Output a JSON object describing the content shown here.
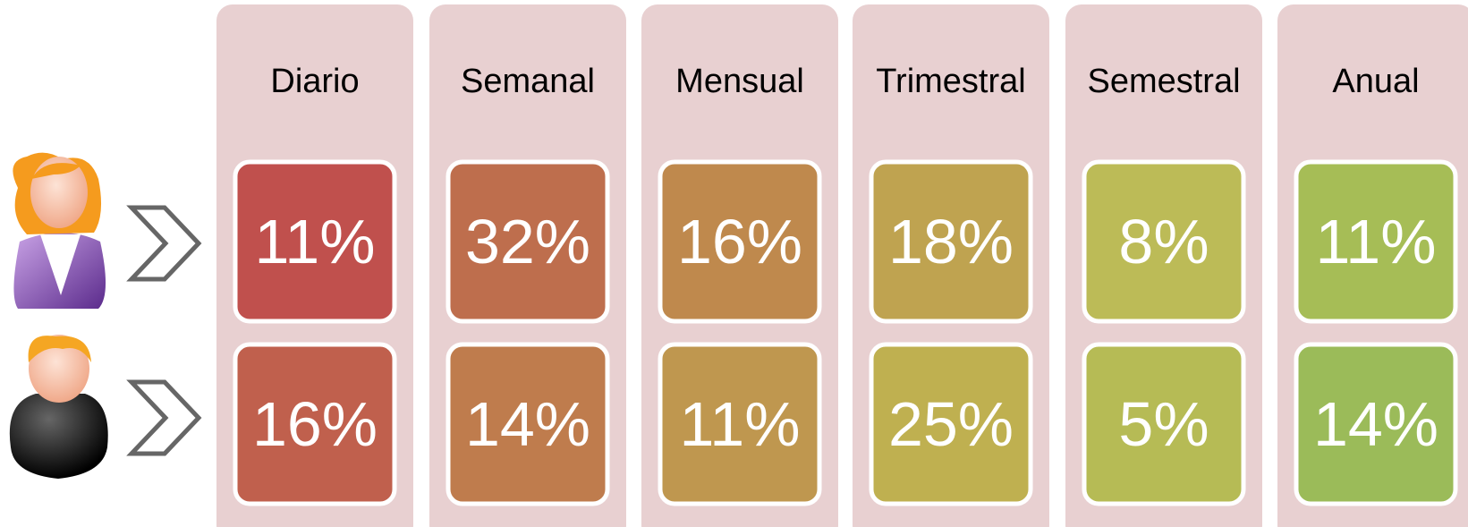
{
  "columns": [
    {
      "label": "Diario",
      "values": [
        "11%",
        "16%"
      ]
    },
    {
      "label": "Semanal",
      "values": [
        "32%",
        "14%"
      ]
    },
    {
      "label": "Mensual",
      "values": [
        "16%",
        "11%"
      ]
    },
    {
      "label": "Trimestral",
      "values": [
        "18%",
        "25%"
      ]
    },
    {
      "label": "Semestral",
      "values": [
        "8%",
        "5%"
      ]
    },
    {
      "label": "Anual",
      "values": [
        "11%",
        "14%"
      ]
    }
  ]
}
